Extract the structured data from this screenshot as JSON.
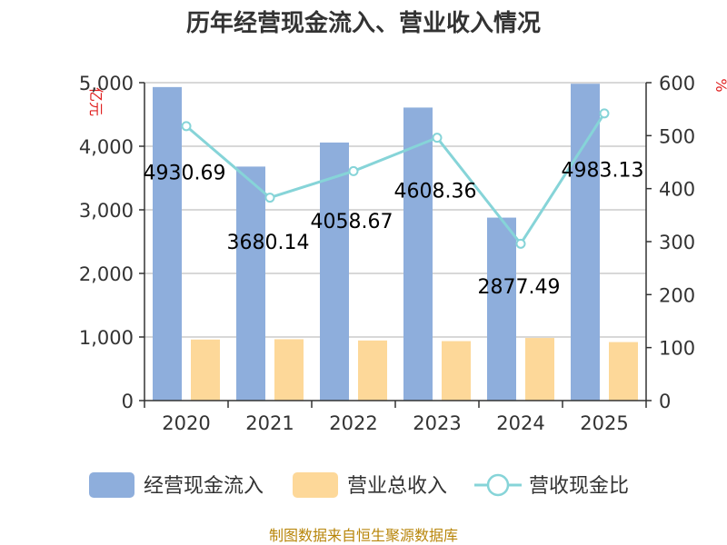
{
  "chart_data": {
    "type": "bar",
    "title": "历年经营现金流入、营业收入情况",
    "categories": [
      "2020",
      "2021",
      "2022",
      "2023",
      "2024",
      "2025"
    ],
    "series": [
      {
        "name": "经营现金流入",
        "type": "bar",
        "axis": "left",
        "color": "#8eaedc",
        "values": [
          4930.69,
          3680.14,
          4058.67,
          4608.36,
          2877.49,
          4983.13
        ]
      },
      {
        "name": "营业总收入",
        "type": "bar",
        "axis": "left",
        "color": "#fdd899",
        "values": [
          960,
          965,
          945,
          935,
          985,
          920
        ]
      },
      {
        "name": "营收现金比",
        "type": "line",
        "axis": "right",
        "color": "#86d4d8",
        "values": [
          518,
          383,
          433,
          496,
          296,
          542
        ]
      }
    ],
    "data_labels": [
      "4930.69",
      "3680.14",
      "4058.67",
      "4608.36",
      "2877.49",
      "4983.13"
    ],
    "left_axis": {
      "unit": "亿元",
      "min": 0,
      "max": 5000,
      "ticks": [
        "0",
        "1,000",
        "2,000",
        "3,000",
        "4,000",
        "5,000"
      ]
    },
    "right_axis": {
      "unit": "%",
      "min": 0,
      "max": 600,
      "ticks": [
        "0",
        "100",
        "200",
        "300",
        "400",
        "500",
        "600"
      ]
    },
    "grid": true,
    "legend_position": "bottom",
    "source_text": "制图数据来自恒生聚源数据库"
  }
}
